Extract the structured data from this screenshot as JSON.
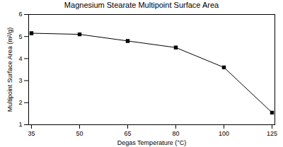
{
  "chart_data": {
    "type": "line",
    "title": "Magnesium Stearate Multipoint Surface Area",
    "x_label": "Degas Temperature (°C)",
    "y_label": "Multipoint Surface Area (m²/g)",
    "categories": [
      "35",
      "50",
      "65",
      "80",
      "100",
      "125"
    ],
    "values": [
      5.15,
      5.1,
      4.8,
      4.5,
      3.6,
      1.55
    ],
    "color": "#000000",
    "marker": "square",
    "line_style": "solid",
    "ylim": [
      1,
      6
    ],
    "yticks": [
      1,
      2,
      3,
      4,
      5,
      6
    ],
    "grid": false
  }
}
